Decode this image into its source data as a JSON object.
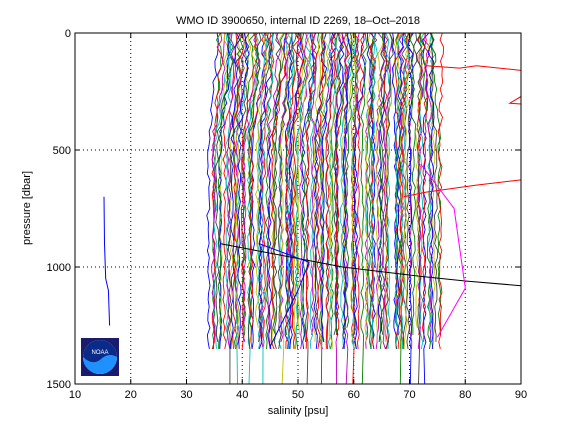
{
  "chart_data": {
    "type": "line",
    "title": "WMO ID 3900650, internal ID 2269, 18–Oct–2018",
    "xlabel": "salinity [psu]",
    "ylabel": "pressure [dbar]",
    "xlim": [
      10,
      90
    ],
    "ylim": [
      1500,
      0
    ],
    "y_reversed": true,
    "grid": "dotted",
    "x_ticks": [
      10,
      20,
      30,
      40,
      50,
      60,
      70,
      80,
      90
    ],
    "y_ticks": [
      0,
      500,
      1000,
      1500
    ],
    "x_tick_labels": [
      "10",
      "20",
      "30",
      "40",
      "50",
      "60",
      "70",
      "80",
      "90"
    ],
    "y_tick_labels": [
      "0",
      "500",
      "1000",
      "1500"
    ],
    "profile_bundle": {
      "count": 150,
      "x_start_range": [
        36,
        75
      ],
      "x_at_depth_range": [
        34,
        75
      ],
      "max_pressure": 1350,
      "colors": [
        "#0000ff",
        "#008000",
        "#ff0000",
        "#00bfbf",
        "#bf00bf",
        "#bfbf00",
        "#404040"
      ]
    },
    "outlier_series": [
      {
        "color": "#ff0000",
        "points": [
          [
            73,
            140
          ],
          [
            79,
            150
          ],
          [
            82,
            140
          ],
          [
            90,
            160
          ],
          [
            94,
            170
          ],
          [
            95,
            200
          ],
          [
            88,
            300
          ],
          [
            94,
            310
          ],
          [
            100,
            350
          ],
          [
            106,
            390
          ],
          [
            105,
            600
          ],
          [
            100,
            600
          ],
          [
            82,
            650
          ],
          [
            73,
            680
          ],
          [
            69,
            700
          ]
        ]
      },
      {
        "color": "#000000",
        "points": [
          [
            36,
            900
          ],
          [
            58,
            1000
          ],
          [
            72,
            1040
          ],
          [
            80,
            1060
          ],
          [
            90,
            1080
          ],
          [
            90,
            1300
          ]
        ]
      },
      {
        "color": "#0000ff",
        "points": [
          [
            43,
            900
          ],
          [
            52,
            980
          ],
          [
            50,
            1100
          ],
          [
            45,
            1340
          ]
        ]
      },
      {
        "color": "#ff00ff",
        "points": [
          [
            72,
            560
          ],
          [
            78,
            750
          ],
          [
            80,
            1090
          ],
          [
            75,
            1300
          ]
        ]
      },
      {
        "color": "#0000ff",
        "points": [
          [
            15.2,
            700
          ],
          [
            15.3,
            900
          ],
          [
            15.5,
            1050
          ],
          [
            16,
            1100
          ],
          [
            16.2,
            1250
          ]
        ]
      }
    ],
    "logo": {
      "text": "NOAA"
    }
  }
}
